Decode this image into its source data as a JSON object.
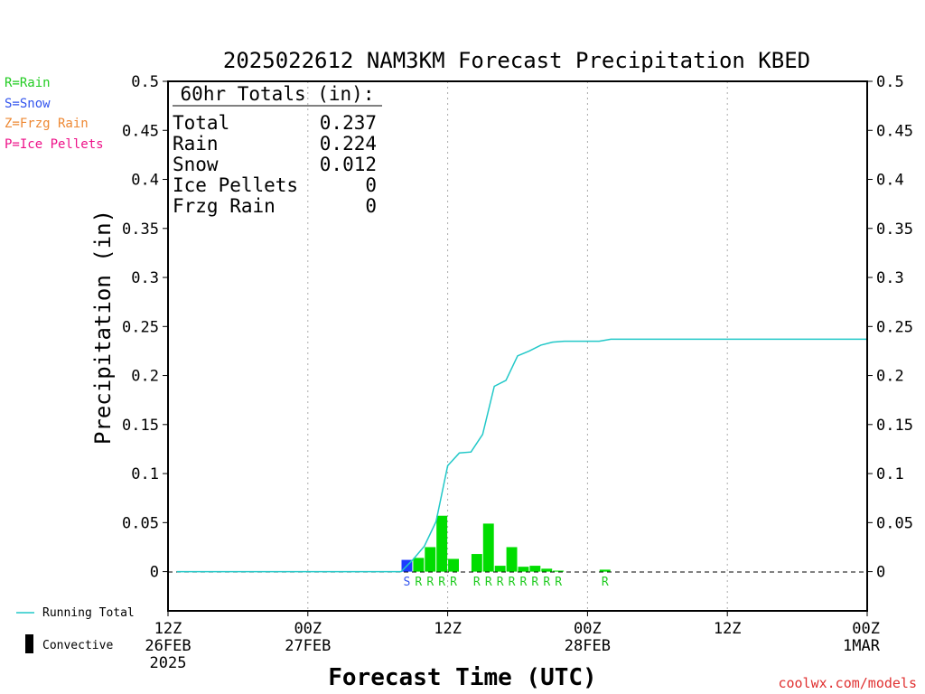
{
  "chart_data": {
    "type": "bar",
    "title": "2025022612 NAM3KM Forecast Precipitation KBED",
    "xlabel": "Forecast Time (UTC)",
    "ylabel": "Precipitation (in)",
    "ylim": [
      -0.04,
      0.5
    ],
    "y_ticks": [
      "0.5",
      "0.45",
      "0.4",
      "0.35",
      "0.3",
      "0.25",
      "0.2",
      "0.15",
      "0.1",
      "0.05",
      "0"
    ],
    "x_ticks": [
      {
        "hour": 0,
        "line1": "12Z",
        "line2": "26FEB",
        "line3": "2025"
      },
      {
        "hour": 12,
        "line1": "00Z",
        "line2": "27FEB",
        "line3": ""
      },
      {
        "hour": 24,
        "line1": "12Z",
        "line2": "",
        "line3": ""
      },
      {
        "hour": 36,
        "line1": "00Z",
        "line2": "28FEB",
        "line3": ""
      },
      {
        "hour": 48,
        "line1": "12Z",
        "line2": "",
        "line3": ""
      },
      {
        "hour": 60,
        "line1": "00Z",
        "line2": "1MAR",
        "line3": ""
      }
    ],
    "xlim_hours": [
      0,
      60
    ],
    "grid": "vertical dotted",
    "bars": [
      {
        "hour": 21,
        "value": 0.012,
        "type": "S"
      },
      {
        "hour": 22,
        "value": 0.014,
        "type": "R"
      },
      {
        "hour": 23,
        "value": 0.025,
        "type": "R"
      },
      {
        "hour": 24,
        "value": 0.057,
        "type": "R"
      },
      {
        "hour": 25,
        "value": 0.013,
        "type": "R"
      },
      {
        "hour": 27,
        "value": 0.018,
        "type": "R"
      },
      {
        "hour": 28,
        "value": 0.049,
        "type": "R"
      },
      {
        "hour": 29,
        "value": 0.006,
        "type": "R"
      },
      {
        "hour": 30,
        "value": 0.025,
        "type": "R"
      },
      {
        "hour": 31,
        "value": 0.005,
        "type": "R"
      },
      {
        "hour": 32,
        "value": 0.006,
        "type": "R"
      },
      {
        "hour": 33,
        "value": 0.003,
        "type": "R"
      },
      {
        "hour": 34,
        "value": 0.001,
        "type": "R"
      },
      {
        "hour": 38,
        "value": 0.002,
        "type": "R"
      }
    ],
    "running_total": {
      "name": "Running Total",
      "points": [
        [
          0.75,
          0
        ],
        [
          20,
          0
        ],
        [
          21,
          0.012
        ],
        [
          22,
          0.026
        ],
        [
          23,
          0.051
        ],
        [
          24,
          0.108
        ],
        [
          25,
          0.121
        ],
        [
          26,
          0.122
        ],
        [
          27,
          0.14
        ],
        [
          28,
          0.189
        ],
        [
          29,
          0.195
        ],
        [
          30,
          0.22
        ],
        [
          31,
          0.225
        ],
        [
          32,
          0.231
        ],
        [
          33,
          0.234
        ],
        [
          34,
          0.235
        ],
        [
          36,
          0.235
        ],
        [
          37,
          0.235
        ],
        [
          38,
          0.237
        ],
        [
          60,
          0.237
        ]
      ]
    },
    "type_labels": [
      {
        "hour": 21,
        "text": "S",
        "type": "S"
      },
      {
        "hour": 22,
        "text": "R",
        "type": "R"
      },
      {
        "hour": 23,
        "text": "R",
        "type": "R"
      },
      {
        "hour": 24,
        "text": "R",
        "type": "R"
      },
      {
        "hour": 25,
        "text": "R",
        "type": "R"
      },
      {
        "hour": 27,
        "text": "R",
        "type": "R"
      },
      {
        "hour": 28,
        "text": "R",
        "type": "R"
      },
      {
        "hour": 29,
        "text": "R",
        "type": "R"
      },
      {
        "hour": 30,
        "text": "R",
        "type": "R"
      },
      {
        "hour": 31,
        "text": "R",
        "type": "R"
      },
      {
        "hour": 32,
        "text": "R",
        "type": "R"
      },
      {
        "hour": 33,
        "text": "R",
        "type": "R"
      },
      {
        "hour": 34,
        "text": "R",
        "type": "R"
      },
      {
        "hour": 38,
        "text": "R",
        "type": "R"
      }
    ],
    "totals": {
      "header": "60hr Totals (in):",
      "rows": [
        {
          "label": "Total",
          "value": "0.237"
        },
        {
          "label": "Rain",
          "value": "0.224"
        },
        {
          "label": "Snow",
          "value": "0.012"
        },
        {
          "label": "Ice Pellets",
          "value": "0"
        },
        {
          "label": "Frzg Rain",
          "value": "0"
        }
      ]
    },
    "type_legend": [
      {
        "text": "R=Rain",
        "color": "#22cc22"
      },
      {
        "text": "S=Snow",
        "color": "#3355ee"
      },
      {
        "text": "Z=Frzg Rain",
        "color": "#ee8833"
      },
      {
        "text": "P=Ice Pellets",
        "color": "#ee1188"
      }
    ],
    "line_legend": [
      {
        "text": "Running Total",
        "swatch": "line",
        "color": "#22c8c8"
      },
      {
        "text": "Convective",
        "swatch": "bar",
        "color": "#000000"
      }
    ],
    "colors": {
      "rain": "#00dd00",
      "snow": "#1e3cff",
      "running_total": "#22c8c8",
      "rain_label": "#22cc22",
      "snow_label": "#3355ee"
    },
    "credit": "coolwx.com/models"
  }
}
